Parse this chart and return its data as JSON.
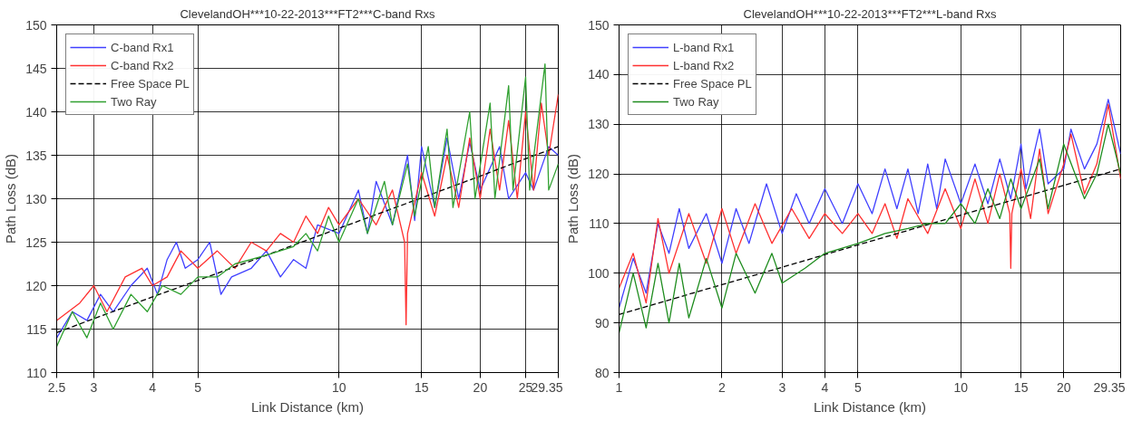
{
  "chart_data": [
    {
      "type": "line",
      "title": "ClevelandOH***10-22-2013***FT2***C-band Rxs",
      "xlabel": "Link Distance (km)",
      "ylabel": "Path Loss (dB)",
      "log": "x",
      "grid": true,
      "legend": "top left",
      "xlim": [
        2.5,
        29.35
      ],
      "xticks": [
        2.5,
        3,
        4,
        5,
        10,
        15,
        20,
        25,
        29.35
      ],
      "ylim": [
        110,
        150
      ],
      "yticks": [
        110,
        115,
        120,
        125,
        130,
        135,
        140,
        145,
        150
      ],
      "series": [
        {
          "name": "C-band Rx1",
          "color": "#4040ff",
          "x": [
            2.5,
            2.7,
            2.9,
            3.1,
            3.3,
            3.6,
            3.9,
            4.1,
            4.3,
            4.5,
            4.7,
            5.0,
            5.3,
            5.6,
            5.9,
            6.5,
            7,
            7.5,
            8,
            8.5,
            9,
            10,
            11,
            11.5,
            12,
            13,
            14,
            14.5,
            15,
            16,
            17,
            18,
            19,
            20,
            22,
            23,
            25,
            26,
            28,
            29.35
          ],
          "values": [
            114,
            117,
            116,
            119,
            117,
            120,
            122,
            119,
            123,
            125,
            122,
            123,
            125,
            119,
            121,
            122,
            124,
            121,
            123,
            122,
            127,
            126,
            131,
            126,
            132,
            127,
            135,
            127.5,
            136,
            129,
            137,
            130,
            136.5,
            131,
            136,
            130,
            133,
            131,
            136,
            135
          ]
        },
        {
          "name": "C-band Rx2",
          "color": "#ff3030",
          "x": [
            2.5,
            2.8,
            3.0,
            3.2,
            3.5,
            3.8,
            4.0,
            4.3,
            4.6,
            5.0,
            5.5,
            6,
            6.5,
            7,
            7.5,
            8,
            8.5,
            9,
            9.5,
            10,
            11,
            12,
            13,
            13.8,
            13.9,
            14,
            15,
            16,
            17,
            18,
            19,
            20,
            21,
            22,
            23,
            24,
            25,
            26,
            27,
            28,
            29.35
          ],
          "values": [
            116,
            118,
            120,
            117,
            121,
            122,
            120,
            121,
            124,
            122,
            124,
            122,
            125,
            124,
            126,
            125,
            128,
            126,
            129,
            127,
            130,
            127,
            131,
            125,
            115.5,
            126,
            133,
            128,
            135,
            129,
            137,
            130,
            138,
            131,
            139,
            130,
            140,
            131,
            141,
            135,
            142
          ]
        },
        {
          "name": "Free Space PL",
          "color": "#000000",
          "line_style": "dashed",
          "x": [
            2.5,
            3,
            4,
            5,
            7,
            10,
            15,
            20,
            25,
            29.35
          ],
          "values": [
            114.6,
            116.2,
            118.7,
            120.6,
            123.5,
            126.6,
            130.1,
            132.6,
            134.6,
            136.0
          ]
        },
        {
          "name": "Two Ray",
          "color": "#30a030",
          "x": [
            2.5,
            2.7,
            2.9,
            3.1,
            3.3,
            3.6,
            3.9,
            4.2,
            4.6,
            5,
            5.5,
            6,
            7,
            8,
            8.5,
            9,
            9.5,
            10,
            11,
            11.5,
            12.5,
            13,
            14,
            14.5,
            15.5,
            16,
            17,
            17.5,
            19,
            19.5,
            21,
            21.5,
            23,
            23.5,
            25,
            25.5,
            27.5,
            28,
            29.35
          ],
          "values": [
            113,
            117,
            114,
            118,
            115,
            119,
            117,
            120,
            119,
            121,
            121,
            122.5,
            123.5,
            124.5,
            126,
            124,
            128,
            125,
            130,
            126,
            132,
            127,
            134,
            128,
            136,
            129,
            138,
            129,
            140,
            130,
            141,
            130,
            143,
            131,
            144,
            131,
            145.5,
            131,
            134
          ]
        }
      ]
    },
    {
      "type": "line",
      "title": "ClevelandOH***10-22-2013***FT2***L-band Rxs",
      "xlabel": "Link Distance (km)",
      "ylabel": "Path Loss (dB)",
      "log": "x",
      "grid": true,
      "legend": "top left",
      "xlim": [
        1,
        29.35
      ],
      "xticks": [
        1,
        2,
        3,
        4,
        5,
        10,
        15,
        20,
        29.35
      ],
      "ylim": [
        80,
        150
      ],
      "yticks": [
        80,
        90,
        100,
        110,
        120,
        130,
        140,
        150
      ],
      "series": [
        {
          "name": "L-band Rx1",
          "color": "#4040ff",
          "x": [
            1,
            1.1,
            1.2,
            1.3,
            1.4,
            1.5,
            1.6,
            1.8,
            2,
            2.2,
            2.4,
            2.7,
            3,
            3.3,
            3.6,
            4,
            4.5,
            5,
            5.5,
            6,
            6.5,
            7,
            7.5,
            8,
            8.5,
            9,
            10,
            11,
            12,
            13,
            14,
            15,
            15.5,
            17,
            18,
            20,
            21,
            23,
            25,
            27,
            29.35
          ],
          "values": [
            93,
            103,
            96,
            110,
            104,
            113,
            105,
            112,
            102,
            113,
            106,
            118,
            108,
            116,
            110,
            117,
            110,
            118,
            112,
            121,
            113,
            121,
            112,
            122,
            113,
            123,
            114,
            122,
            114,
            123,
            115,
            126,
            117,
            129,
            118,
            121,
            129,
            121,
            126,
            135,
            124
          ]
        },
        {
          "name": "L-band Rx2",
          "color": "#ff3030",
          "x": [
            1,
            1.1,
            1.2,
            1.3,
            1.4,
            1.6,
            1.8,
            2,
            2.2,
            2.5,
            2.8,
            3.2,
            3.6,
            4,
            4.5,
            5,
            5.5,
            6,
            6.5,
            7,
            8,
            9,
            10,
            11,
            12,
            13,
            13.9,
            14,
            14.1,
            15,
            16,
            17,
            18,
            20,
            21,
            23,
            25,
            27,
            29.35
          ],
          "values": [
            97,
            104,
            94,
            111,
            100,
            112,
            102,
            113,
            104,
            114,
            106,
            113,
            107,
            112,
            108,
            112,
            108,
            114,
            107,
            115,
            108,
            117,
            109,
            119,
            110,
            120,
            112,
            101,
            112,
            121,
            111,
            125,
            112,
            122,
            128,
            116,
            122,
            134,
            119
          ]
        },
        {
          "name": "Free Space PL",
          "color": "#000000",
          "line_style": "dashed",
          "x": [
            1,
            2,
            3,
            5,
            10,
            15,
            20,
            29.35
          ],
          "values": [
            91.7,
            97.7,
            101.2,
            105.7,
            111.7,
            115.2,
            117.7,
            121
          ]
        },
        {
          "name": "Two Ray",
          "color": "#1e8c1e",
          "x": [
            1,
            1.1,
            1.2,
            1.3,
            1.4,
            1.5,
            1.6,
            1.8,
            2,
            2.2,
            2.5,
            2.8,
            3,
            3.5,
            4,
            5,
            6,
            7,
            8,
            9,
            10,
            11,
            12,
            13,
            14,
            15,
            17,
            18,
            20,
            23,
            25,
            27,
            29.35
          ],
          "values": [
            88,
            100,
            89,
            102,
            90,
            102,
            91,
            103,
            93,
            104,
            96,
            104,
            98,
            101,
            104,
            106,
            108,
            109,
            110,
            110,
            114,
            110,
            117,
            111,
            119,
            113,
            123,
            113,
            126,
            115,
            120,
            130,
            120
          ]
        }
      ]
    }
  ]
}
